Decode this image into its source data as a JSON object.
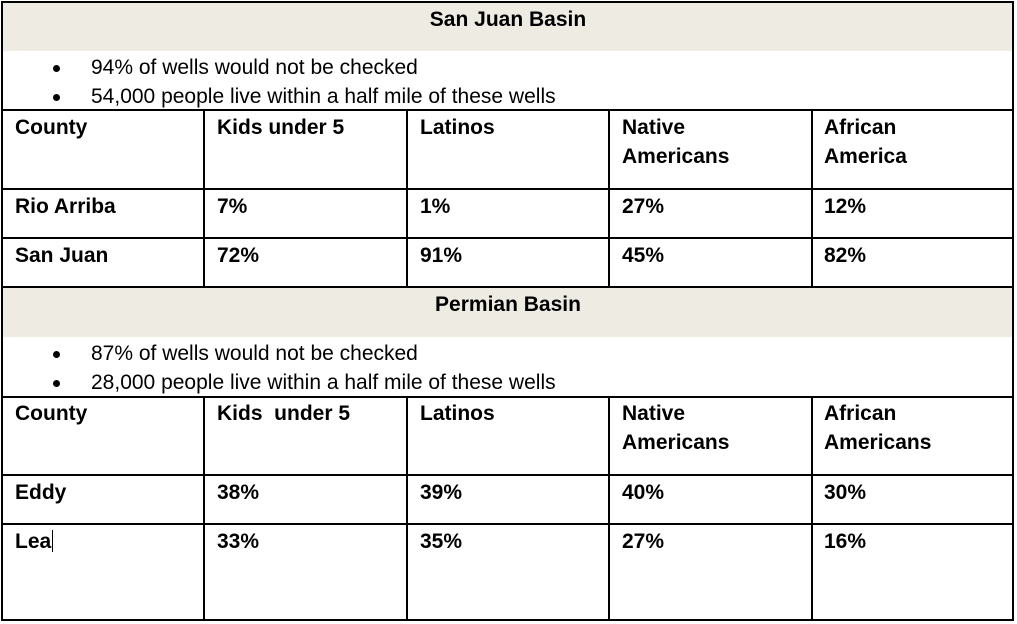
{
  "sections": [
    {
      "title": "San Juan Basin",
      "bullets": [
        "94% of wells would not be checked",
        "54,000 people live within a half mile of these wells"
      ],
      "headers": [
        "County",
        "Kids under 5",
        "Latinos",
        "Native\nAmericans",
        "African\nAmerica"
      ],
      "rows": [
        [
          "Rio Arriba",
          "7%",
          "1%",
          "27%",
          "12%"
        ],
        [
          "San Juan",
          "72%",
          "91%",
          "45%",
          "82%"
        ]
      ]
    },
    {
      "title": "Permian Basin",
      "bullets": [
        "87% of wells would not be checked",
        "28,000 people live within a half mile of these wells"
      ],
      "headers": [
        "County",
        "Kids  under 5",
        "Latinos",
        "Native\nAmericans",
        "African\nAmericans"
      ],
      "rows": [
        [
          "Eddy",
          "38%",
          "39%",
          "40%",
          "30%"
        ],
        [
          "Lea",
          "33%",
          "35%",
          "27%",
          "16%"
        ]
      ]
    }
  ]
}
